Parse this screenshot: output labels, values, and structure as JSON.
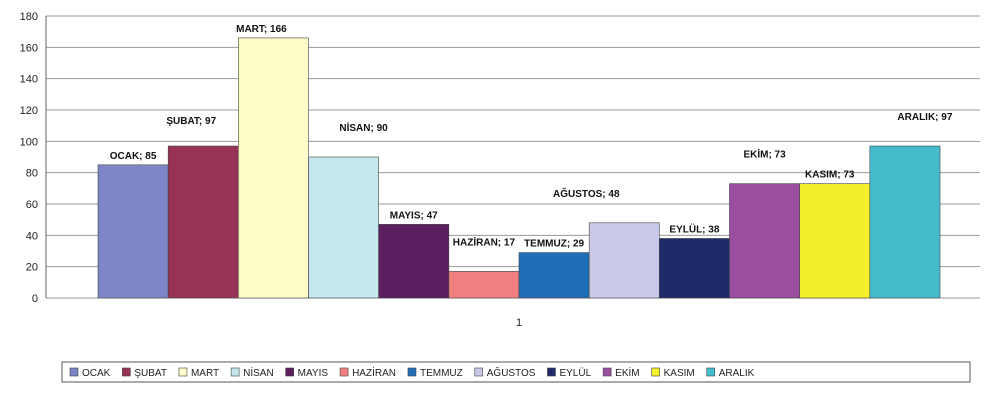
{
  "chart_data": {
    "type": "bar",
    "categories": [
      "1"
    ],
    "ylim": [
      0,
      180
    ],
    "yticks": [
      0,
      20,
      40,
      60,
      80,
      100,
      120,
      140,
      160,
      180
    ],
    "grid": true,
    "legend_position": "bottom",
    "series": [
      {
        "name": "OCAK",
        "value": 85,
        "label": "OCAK; 85",
        "color": "#7f86c8"
      },
      {
        "name": "ŞUBAT",
        "value": 97,
        "label": "ŞUBAT; 97",
        "color": "#993355"
      },
      {
        "name": "MART",
        "value": 166,
        "label": "MART; 166",
        "color": "#fdfbc8"
      },
      {
        "name": "NİSAN",
        "value": 90,
        "label": "NİSAN; 90",
        "color": "#c4e8ee"
      },
      {
        "name": "MAYIS",
        "value": 47,
        "label": "MAYIS; 47",
        "color": "#5b1f5f"
      },
      {
        "name": "HAZİRAN",
        "value": 17,
        "label": "HAZİRAN; 17",
        "color": "#f08080"
      },
      {
        "name": "TEMMUZ",
        "value": 29,
        "label": "TEMMUZ; 29",
        "color": "#1f6fb8"
      },
      {
        "name": "AĞUSTOS",
        "value": 48,
        "label": "AĞUSTOS; 48",
        "color": "#c8c8e8"
      },
      {
        "name": "EYLÜL",
        "value": 38,
        "label": "EYLÜL; 38",
        "color": "#1f2a6a"
      },
      {
        "name": "EKİM",
        "value": 73,
        "label": "EKİM; 73",
        "color": "#9a4ea0"
      },
      {
        "name": "KASIM",
        "value": 73,
        "label": "KASIM; 73",
        "color": "#f5ee2a"
      },
      {
        "name": "ARALIK",
        "value": 97,
        "label": "ARALIK; 97",
        "color": "#44bccc"
      }
    ]
  }
}
